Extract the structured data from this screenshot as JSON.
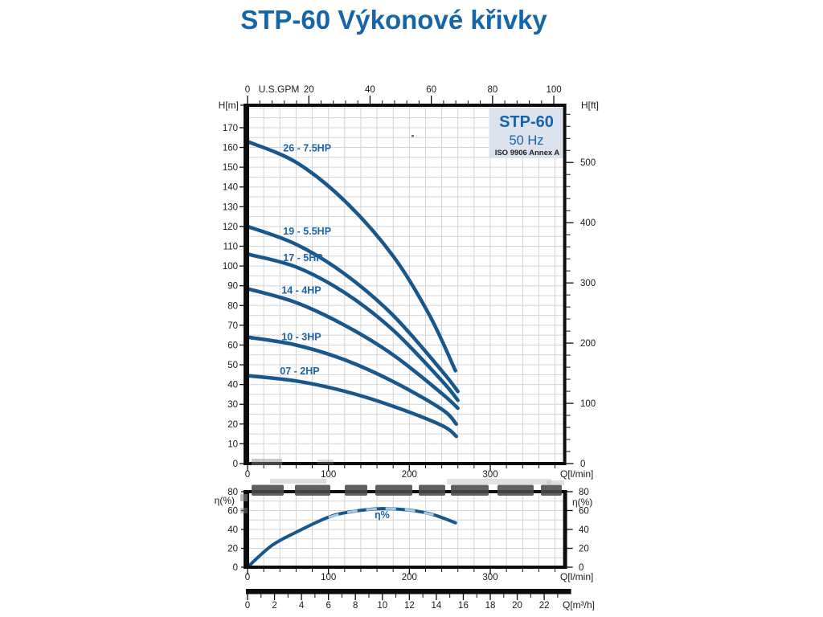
{
  "title": "STP-60 Výkonové křivky",
  "badge": {
    "model": "STP-60",
    "frequency": "50 Hz",
    "standard": "ISO 9906 Annex A"
  },
  "colors": {
    "title_blue": "#1565a8",
    "curve_blue": "#17578c",
    "curve_label_blue": "#1b66a8",
    "grid_gray": "#d4d4d4",
    "axis_black": "#0d0d0d",
    "badge_bg": "#dce3ee",
    "badge_text_dark": "#222222",
    "watermark_gray": "#4a4a4a"
  },
  "chart_data": [
    {
      "id": "head_curves",
      "type": "line",
      "x_bottom": {
        "label": "Q[l/min]",
        "ticks": [
          0,
          100,
          200,
          300
        ],
        "minor_step": 20,
        "range": [
          0,
          392
        ]
      },
      "x_top": {
        "label": "U.S.GPM",
        "ticks": [
          0,
          20,
          40,
          60,
          80,
          100
        ],
        "minor_step": 4,
        "range_gpm": [
          0,
          103.5
        ]
      },
      "y_left": {
        "label": "H[m]",
        "tick_step": 10,
        "tick_max": 170,
        "range": [
          0,
          181.4
        ]
      },
      "y_right": {
        "label": "H[ft]",
        "ticks": [
          0,
          100,
          200,
          300,
          400,
          500
        ],
        "minor_step": 20,
        "max_ft": 580
      },
      "grid": {
        "x_step": 20,
        "y_step": 5
      },
      "series": [
        {
          "name": "26 - 7.5HP",
          "label_at": [
            44,
            158
          ],
          "points": [
            [
              0,
              163
            ],
            [
              60,
              152.5
            ],
            [
              120,
              133
            ],
            [
              180,
              105
            ],
            [
              225,
              75
            ],
            [
              257,
              47
            ]
          ]
        },
        {
          "name": "19 - 5.5HP",
          "label_at": [
            44,
            116
          ],
          "points": [
            [
              0,
              120
            ],
            [
              60,
              111
            ],
            [
              120,
              96
            ],
            [
              180,
              75
            ],
            [
              240,
              47
            ],
            [
              260,
              36.5
            ]
          ]
        },
        {
          "name": "17 - 5HP",
          "label_at": [
            44,
            102.5
          ],
          "points": [
            [
              0,
              106
            ],
            [
              60,
              99.5
            ],
            [
              120,
              86.5
            ],
            [
              180,
              67.5
            ],
            [
              240,
              42
            ],
            [
              260,
              32
            ]
          ]
        },
        {
          "name": "14 - 4HP",
          "label_at": [
            42,
            86
          ],
          "points": [
            [
              0,
              88.5
            ],
            [
              60,
              81.5
            ],
            [
              120,
              70
            ],
            [
              180,
              55
            ],
            [
              240,
              35.5
            ],
            [
              260,
              28
            ]
          ]
        },
        {
          "name": "10 - 3HP",
          "label_at": [
            42,
            62.5
          ],
          "points": [
            [
              0,
              64
            ],
            [
              60,
              60
            ],
            [
              120,
              52.5
            ],
            [
              180,
              41.5
            ],
            [
              240,
              27.5
            ],
            [
              258,
              20
            ]
          ]
        },
        {
          "name": "07 - 2HP",
          "label_at": [
            40,
            45.2
          ],
          "points": [
            [
              0,
              44.5
            ],
            [
              60,
              41.8
            ],
            [
              120,
              36.6
            ],
            [
              180,
              29
            ],
            [
              240,
              19.3
            ],
            [
              258,
              13.8
            ]
          ]
        }
      ]
    },
    {
      "id": "efficiency",
      "type": "line",
      "x_bottom": {
        "label": "Q[l/min]",
        "ticks": [
          0,
          100,
          200,
          300
        ],
        "minor_step": 20,
        "range": [
          0,
          392
        ]
      },
      "y_left": {
        "label": "η(%)",
        "ticks": [
          0,
          20,
          40,
          60,
          80
        ],
        "range": [
          0,
          80
        ]
      },
      "y_right": {
        "label": "η(%)",
        "ticks": [
          0,
          20,
          40,
          60,
          80
        ]
      },
      "grid": {
        "x_step": 20,
        "y_step": 10
      },
      "series": [
        {
          "name": "η%",
          "label_at": [
            157,
            52
          ],
          "points": [
            [
              0,
              0
            ],
            [
              30,
              23
            ],
            [
              60,
              37
            ],
            [
              100,
              53
            ],
            [
              130,
              59
            ],
            [
              165,
              62
            ],
            [
              200,
              60.5
            ],
            [
              230,
              55.5
            ],
            [
              257,
              47
            ]
          ]
        }
      ]
    },
    {
      "id": "flow_conversion_scale",
      "type": "axis",
      "label": "Q[m³/h]",
      "ticks": [
        0,
        2,
        4,
        6,
        8,
        10,
        12,
        14,
        16,
        18,
        20,
        22
      ],
      "minor_step": 1,
      "range": [
        0,
        24
      ]
    }
  ]
}
